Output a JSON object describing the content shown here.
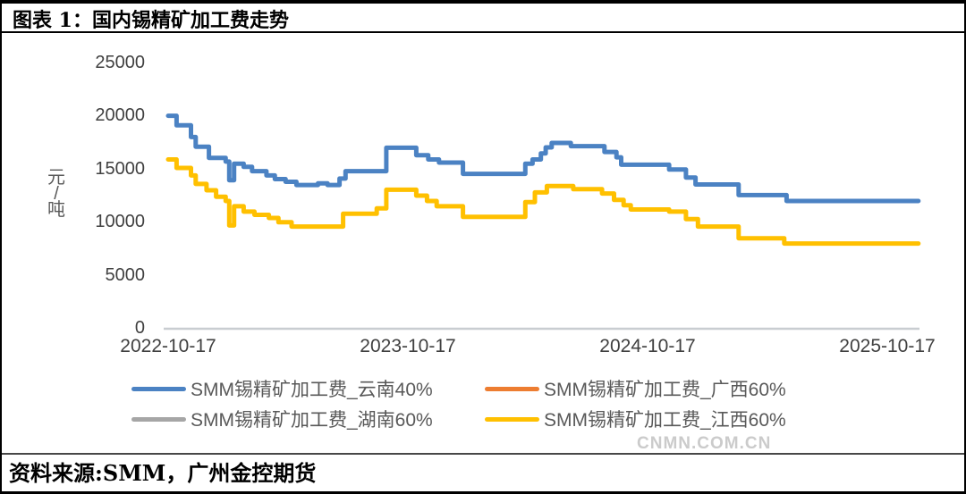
{
  "header": {
    "title": "图表 1：国内锡精矿加工费走势"
  },
  "footer": {
    "source": "资料来源:SMM，广州金控期货",
    "watermark": "CNMN.COM.CN"
  },
  "chart_data": {
    "type": "line",
    "title": "国内锡精矿加工费走势",
    "ylabel": "元/吨",
    "ylabel_chars": [
      "元",
      "/",
      "吨"
    ],
    "ylim": [
      0,
      25000
    ],
    "ytick_labels": [
      "25000",
      "20000",
      "15000",
      "10000",
      "5000",
      "0"
    ],
    "xtick_labels": [
      "2022-10-17",
      "2023-10-17",
      "2024-10-17",
      "2025-10-17"
    ],
    "x_unit": "years_since_first_tick",
    "x_tick_positions_years": [
      0,
      1,
      2,
      3
    ],
    "x_end": 3.13,
    "grid": false,
    "legend_position": "bottom",
    "axis_color": "#c9cdd1",
    "series": [
      {
        "name": "SMM锡精矿加工费_云南40%",
        "color": "#4B82C3",
        "visible": true,
        "points": [
          [
            0.0,
            20000
          ],
          [
            0.035,
            19100
          ],
          [
            0.095,
            18000
          ],
          [
            0.115,
            17100
          ],
          [
            0.17,
            16050
          ],
          [
            0.24,
            15700
          ],
          [
            0.255,
            13950
          ],
          [
            0.275,
            15500
          ],
          [
            0.315,
            15200
          ],
          [
            0.35,
            14800
          ],
          [
            0.41,
            14400
          ],
          [
            0.445,
            14050
          ],
          [
            0.49,
            13800
          ],
          [
            0.535,
            13500
          ],
          [
            0.625,
            13650
          ],
          [
            0.665,
            13500
          ],
          [
            0.715,
            14100
          ],
          [
            0.74,
            14800
          ],
          [
            0.91,
            17000
          ],
          [
            1.035,
            16300
          ],
          [
            1.085,
            15900
          ],
          [
            1.13,
            15600
          ],
          [
            1.23,
            14550
          ],
          [
            1.49,
            15500
          ],
          [
            1.52,
            15900
          ],
          [
            1.555,
            16470
          ],
          [
            1.575,
            17030
          ],
          [
            1.6,
            17450
          ],
          [
            1.68,
            17150
          ],
          [
            1.82,
            16600
          ],
          [
            1.87,
            16100
          ],
          [
            1.89,
            15400
          ],
          [
            2.09,
            14950
          ],
          [
            2.16,
            14200
          ],
          [
            2.2,
            13550
          ],
          [
            2.38,
            12550
          ],
          [
            2.58,
            12000
          ]
        ]
      },
      {
        "name": "SMM锡精矿加工费_广西60%",
        "color": "#ED7D31",
        "visible": false,
        "points": []
      },
      {
        "name": "SMM锡精矿加工费_湖南60%",
        "color": "#A6A6A6",
        "visible": false,
        "points": []
      },
      {
        "name": "SMM锡精矿加工费_江西60%",
        "color": "#FFC000",
        "visible": true,
        "points": [
          [
            0.0,
            15900
          ],
          [
            0.035,
            15100
          ],
          [
            0.095,
            14400
          ],
          [
            0.115,
            13600
          ],
          [
            0.16,
            13000
          ],
          [
            0.2,
            12400
          ],
          [
            0.24,
            12000
          ],
          [
            0.255,
            9700
          ],
          [
            0.275,
            11500
          ],
          [
            0.315,
            11000
          ],
          [
            0.36,
            10700
          ],
          [
            0.42,
            10400
          ],
          [
            0.46,
            10000
          ],
          [
            0.515,
            9600
          ],
          [
            0.73,
            10800
          ],
          [
            0.87,
            11300
          ],
          [
            0.91,
            13050
          ],
          [
            1.035,
            12500
          ],
          [
            1.08,
            12000
          ],
          [
            1.12,
            11500
          ],
          [
            1.23,
            10500
          ],
          [
            1.49,
            11900
          ],
          [
            1.53,
            12800
          ],
          [
            1.58,
            13400
          ],
          [
            1.69,
            13100
          ],
          [
            1.81,
            12700
          ],
          [
            1.86,
            12100
          ],
          [
            1.9,
            11600
          ],
          [
            1.93,
            11200
          ],
          [
            2.09,
            11000
          ],
          [
            2.16,
            10300
          ],
          [
            2.21,
            9600
          ],
          [
            2.38,
            8500
          ],
          [
            2.57,
            8000
          ]
        ]
      }
    ]
  }
}
